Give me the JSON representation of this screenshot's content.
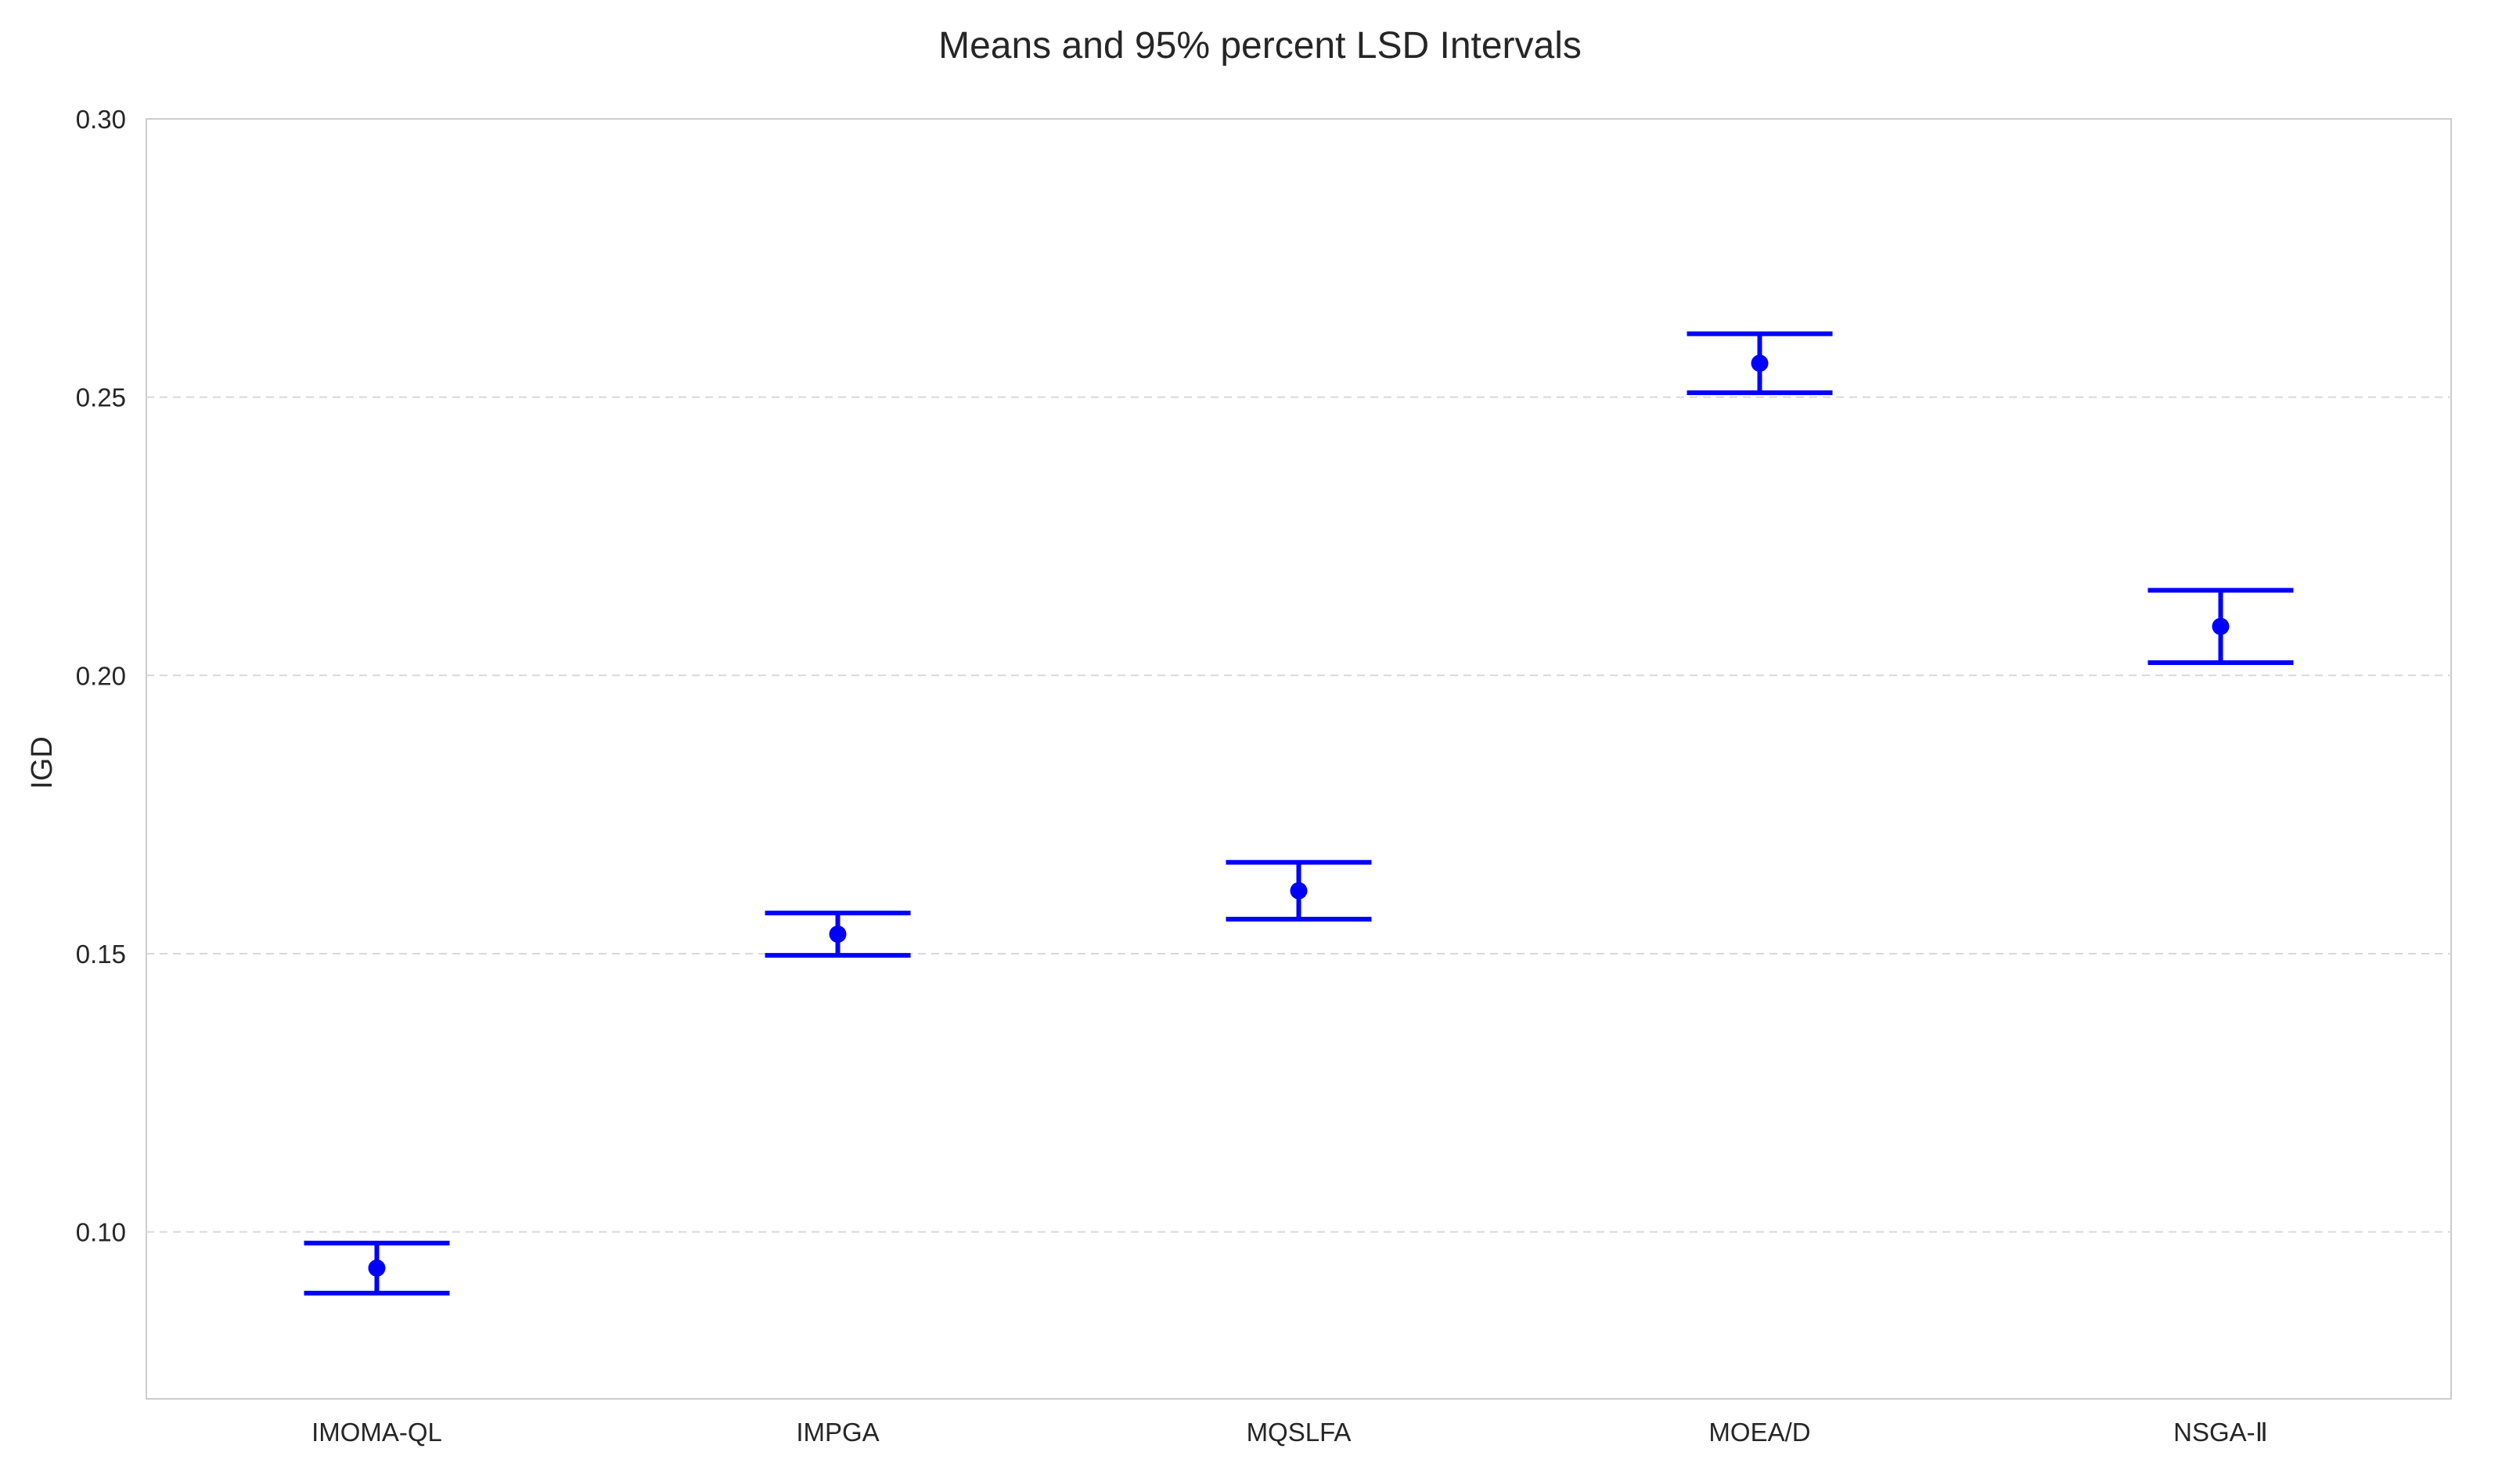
{
  "chart_data": {
    "type": "errorbar",
    "title": "Means and 95% percent LSD Intervals",
    "xlabel": "",
    "ylabel": "IGD",
    "ylim": [
      0.07,
      0.3
    ],
    "yticks": [
      "0.10",
      "0.15",
      "0.20",
      "0.25",
      "0.30"
    ],
    "grid": "horizontal dashed",
    "categories": [
      "IMOMA-QL",
      "IMPGA",
      "MQSLFA",
      "MOEA/D",
      "NSGA-Ⅱ"
    ],
    "mean": [
      0.0935,
      0.1535,
      0.1613,
      0.2561,
      0.2088
    ],
    "lower": [
      0.089,
      0.1497,
      0.1562,
      0.2508,
      0.2023
    ],
    "upper": [
      0.098,
      0.1573,
      0.1664,
      0.2614,
      0.2153
    ],
    "color": "#0000FF"
  }
}
